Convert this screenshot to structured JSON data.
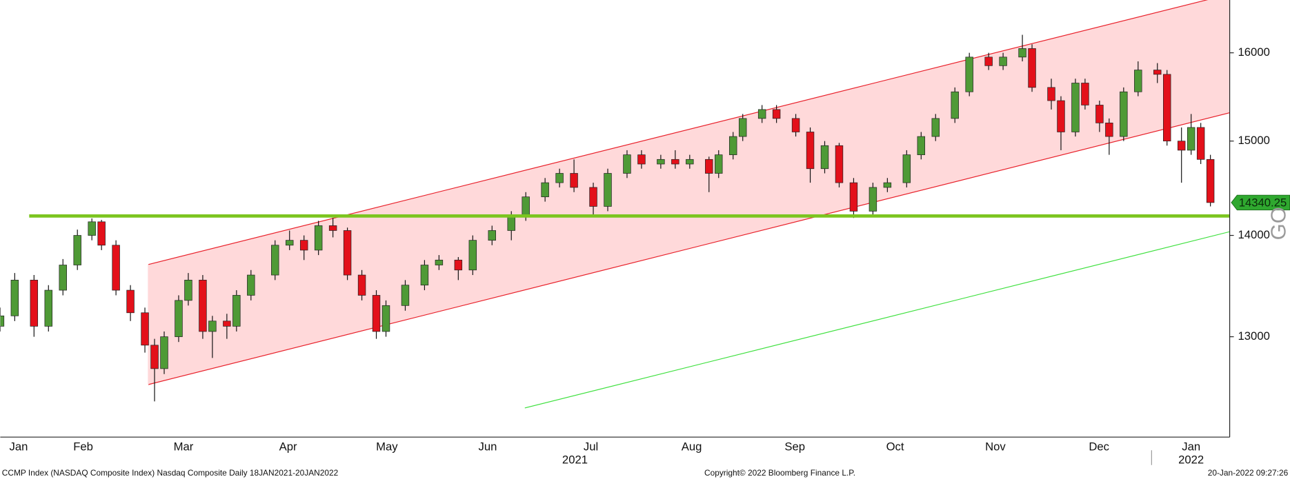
{
  "chart_data": {
    "type": "candlestick",
    "footer_left": "CCMP Index (NASDAQ Composite Index) Nasdaq Composite  Daily 18JAN2021-20JAN2022",
    "footer_center": "Copyright© 2022 Bloomberg Finance L.P.",
    "footer_right": "20-Jan-2022 09:27:26",
    "side_label": "GO",
    "log_scale": true,
    "up_color": "#4f9a36",
    "down_color": "#e3101a",
    "xlim": [
      0,
      255
    ],
    "ylim": [
      12080,
      16630
    ],
    "yticks": [
      13000,
      14000,
      15000,
      16000
    ],
    "xticks": [
      {
        "value": 3.8,
        "label": "Jan"
      },
      {
        "value": 17.2,
        "label": "Feb"
      },
      {
        "value": 38.0,
        "label": "Mar"
      },
      {
        "value": 59.7,
        "label": "Apr"
      },
      {
        "value": 80.2,
        "label": "May"
      },
      {
        "value": 101.1,
        "label": "Jun"
      },
      {
        "value": 122.5,
        "label": "Jul"
      },
      {
        "value": 143.4,
        "label": "Aug"
      },
      {
        "value": 164.8,
        "label": "Sep"
      },
      {
        "value": 185.6,
        "label": "Oct"
      },
      {
        "value": 206.4,
        "label": "Nov"
      },
      {
        "value": 227.9,
        "label": "Dec"
      },
      {
        "value": 247.0,
        "label": "Jan"
      }
    ],
    "year_ticks": [
      {
        "value": 119.2,
        "label": "2021"
      },
      {
        "value": 247.0,
        "label": "2022"
      }
    ],
    "x": [
      0,
      3,
      7,
      10,
      13,
      16,
      19,
      21,
      24,
      27,
      30,
      32,
      34,
      37,
      39,
      42,
      44,
      47,
      49,
      52,
      57,
      60,
      63,
      66,
      69,
      72,
      75,
      78,
      80,
      84,
      88,
      91,
      95,
      98,
      102,
      106,
      109,
      113,
      116,
      119,
      123,
      126,
      130,
      133,
      137,
      140,
      143,
      147,
      149,
      152,
      154,
      158,
      161,
      165,
      168,
      171,
      174,
      177,
      181,
      184,
      188,
      191,
      194,
      198,
      201,
      205,
      208,
      212,
      214,
      218,
      220,
      223,
      225,
      228,
      230,
      233,
      236,
      240,
      242,
      245,
      247,
      249,
      251
    ],
    "open": [
      13100,
      13200,
      13550,
      13100,
      13450,
      13700,
      14000,
      14140,
      13900,
      13450,
      13230,
      12920,
      12700,
      13000,
      13350,
      13550,
      13050,
      13150,
      13100,
      13400,
      13600,
      13900,
      13950,
      13850,
      14100,
      14050,
      13600,
      13400,
      13050,
      13300,
      13500,
      13700,
      13750,
      13650,
      13950,
      14050,
      14200,
      14400,
      14550,
      14650,
      14500,
      14300,
      14650,
      14850,
      14750,
      14800,
      14750,
      14800,
      14650,
      14850,
      15050,
      15250,
      15350,
      15250,
      15100,
      14700,
      14950,
      14550,
      14250,
      14500,
      14550,
      14850,
      15050,
      15250,
      15550,
      15950,
      15850,
      15950,
      16050,
      15600,
      15450,
      15100,
      15650,
      15400,
      15200,
      15050,
      15550,
      15800,
      15750,
      15000,
      14900,
      15150,
      14800
    ],
    "high": [
      13280,
      13620,
      13600,
      13500,
      13760,
      14060,
      14175,
      14160,
      13950,
      13500,
      13280,
      12980,
      13050,
      13400,
      13620,
      13600,
      13200,
      13220,
      13450,
      13650,
      13950,
      14050,
      14000,
      14150,
      14180,
      14080,
      13650,
      13450,
      13350,
      13550,
      13750,
      13800,
      13780,
      14000,
      14100,
      14250,
      14450,
      14600,
      14700,
      14800,
      14550,
      14700,
      14900,
      14900,
      14850,
      14900,
      14850,
      14830,
      14900,
      15100,
      15300,
      15400,
      15400,
      15300,
      15150,
      15000,
      14980,
      14600,
      14550,
      14600,
      14900,
      15100,
      15300,
      15600,
      16000,
      16000,
      16000,
      16212,
      16100,
      15700,
      15500,
      15700,
      15700,
      15450,
      15250,
      15600,
      15900,
      15880,
      15800,
      15150,
      15300,
      15200,
      14850
    ],
    "low": [
      13050,
      13150,
      13000,
      13050,
      13400,
      13650,
      13950,
      13850,
      13400,
      13150,
      12850,
      12400,
      12650,
      12950,
      13300,
      12980,
      12800,
      12980,
      13050,
      13350,
      13550,
      13850,
      13750,
      13800,
      13980,
      13550,
      13350,
      12980,
      13000,
      13250,
      13450,
      13650,
      13550,
      13600,
      13900,
      13950,
      14150,
      14350,
      14500,
      14450,
      14200,
      14250,
      14600,
      14700,
      14700,
      14700,
      14700,
      14450,
      14600,
      14800,
      15000,
      15200,
      15200,
      15050,
      14550,
      14650,
      14500,
      14180,
      14200,
      14450,
      14500,
      14800,
      15000,
      15200,
      15500,
      15800,
      15800,
      15900,
      15550,
      15350,
      14900,
      15050,
      15350,
      15100,
      14850,
      15000,
      15500,
      15650,
      14950,
      14550,
      14850,
      14750,
      14300
    ],
    "close": [
      13200,
      13550,
      13100,
      13450,
      13700,
      14000,
      14140,
      13900,
      13450,
      13230,
      12920,
      12700,
      13000,
      13350,
      13550,
      13050,
      13150,
      13100,
      13400,
      13600,
      13900,
      13950,
      13850,
      14100,
      14050,
      13600,
      13400,
      13050,
      13300,
      13500,
      13700,
      13750,
      13650,
      13950,
      14050,
      14200,
      14400,
      14550,
      14650,
      14500,
      14300,
      14650,
      14850,
      14750,
      14800,
      14750,
      14800,
      14650,
      14850,
      15050,
      15250,
      15350,
      15250,
      15100,
      14700,
      14950,
      14550,
      14250,
      14500,
      14550,
      14850,
      15050,
      15250,
      15550,
      15950,
      15850,
      15950,
      16050,
      15600,
      15450,
      15100,
      15650,
      15400,
      15200,
      15050,
      15550,
      15800,
      15750,
      15000,
      14900,
      15150,
      14800,
      14340.25
    ],
    "overlays": {
      "channel": {
        "color": "#e8202a",
        "fill": "#ffd9da",
        "x": [
          30.7,
          255
        ],
        "upper": [
          13705,
          16701
        ],
        "lower": [
          12553,
          15314
        ]
      },
      "lines": [
        {
          "color": "#7cc520",
          "width": 4,
          "x": [
            6,
            255
          ],
          "y": [
            14200,
            14200
          ]
        },
        {
          "color": "#3ee03e",
          "width": 1,
          "x": [
            108.8,
            255
          ],
          "y": [
            12340,
            14038
          ]
        }
      ]
    },
    "last_price_color": "#2fa82f"
  }
}
